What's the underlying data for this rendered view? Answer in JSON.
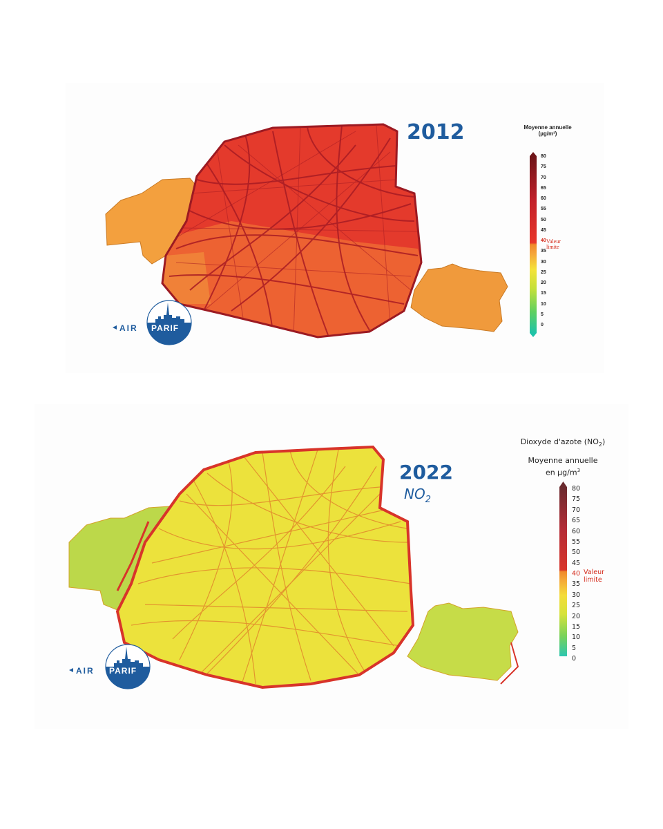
{
  "maps": [
    {
      "year": "2012",
      "legend": {
        "title": "Moyenne annuelle (µg/m³)",
        "ticks": [
          "80",
          "75",
          "70",
          "65",
          "60",
          "55",
          "50",
          "45",
          "40",
          "35",
          "30",
          "25",
          "20",
          "15",
          "10",
          "5",
          "0"
        ],
        "limit_value": "40",
        "limit_label": "Valeur limite"
      },
      "logo": {
        "text_left": "AIR",
        "text_right": "PARIF"
      },
      "colors": {
        "fill": "#e8442c",
        "roads": "#b8232a",
        "outskirts": "#f09a3c"
      }
    },
    {
      "year": "2022",
      "pollutant": "NO",
      "pollutant_sub": "2",
      "legend": {
        "pollutant_title": "Dioxyde d'azote (NO",
        "pollutant_title_sub": "2",
        "pollutant_title_end": ")",
        "title_line1": "Moyenne annuelle",
        "title_line2": "en µg/m",
        "title_line2_sup": "3",
        "ticks": [
          "80",
          "75",
          "70",
          "65",
          "60",
          "55",
          "50",
          "45",
          "40",
          "35",
          "30",
          "25",
          "20",
          "15",
          "10",
          "5",
          "0"
        ],
        "limit_value": "40",
        "limit_label": "Valeur limite"
      },
      "logo": {
        "text_left": "AIR",
        "text_right": "PARIF"
      },
      "colors": {
        "fill": "#e6e03a",
        "roads": "#e0562a",
        "outskirts": "#b9d84a"
      }
    }
  ]
}
